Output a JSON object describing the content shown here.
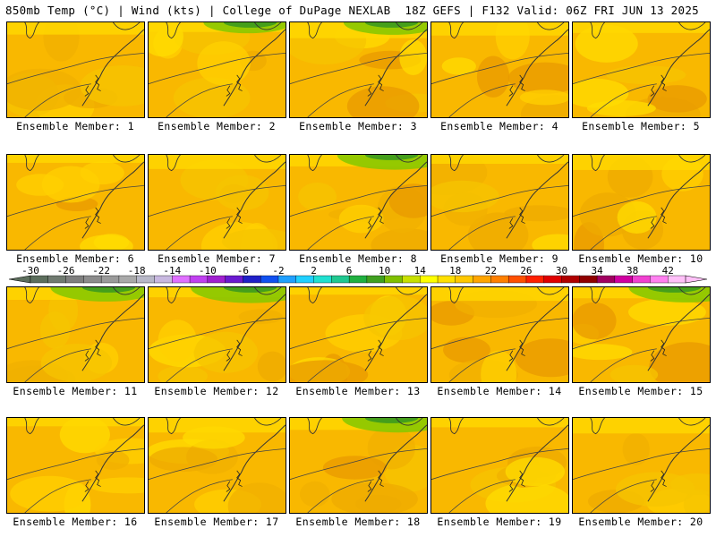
{
  "header": {
    "left": "850mb Temp (°C) | Wind (kts) | College of DuPage NEXLAB",
    "right": "18Z GEFS | F132 Valid: 06Z FRI JUN 13 2025"
  },
  "panels": [
    {
      "label": "Ensemble Member: 1"
    },
    {
      "label": "Ensemble Member: 2"
    },
    {
      "label": "Ensemble Member: 3"
    },
    {
      "label": "Ensemble Member: 4"
    },
    {
      "label": "Ensemble Member: 5"
    },
    {
      "label": "Ensemble Member: 6"
    },
    {
      "label": "Ensemble Member: 7"
    },
    {
      "label": "Ensemble Member: 8"
    },
    {
      "label": "Ensemble Member: 9"
    },
    {
      "label": "Ensemble Member: 10"
    },
    {
      "label": "Ensemble Member: 11"
    },
    {
      "label": "Ensemble Member: 12"
    },
    {
      "label": "Ensemble Member: 13"
    },
    {
      "label": "Ensemble Member: 14"
    },
    {
      "label": "Ensemble Member: 15"
    },
    {
      "label": "Ensemble Member: 16"
    },
    {
      "label": "Ensemble Member: 17"
    },
    {
      "label": "Ensemble Member: 18"
    },
    {
      "label": "Ensemble Member: 19"
    },
    {
      "label": "Ensemble Member: 20"
    }
  ],
  "colorbar": {
    "tick_labels": [
      "-30",
      "-26",
      "-22",
      "-18",
      "-14",
      "-10",
      "-6",
      "-2",
      "2",
      "6",
      "10",
      "14",
      "18",
      "22",
      "26",
      "30",
      "34",
      "38",
      "42"
    ],
    "colors": [
      "#5c6e5c",
      "#707a70",
      "#7f7f7f",
      "#8c8c8c",
      "#9a9a9a",
      "#a9a9a9",
      "#b8b8c8",
      "#c8b8e0",
      "#e070ff",
      "#c040f0",
      "#a020d0",
      "#6a1ad0",
      "#2020c8",
      "#1050f0",
      "#20a0ff",
      "#20d0ff",
      "#20e0d0",
      "#20c890",
      "#20b040",
      "#40a020",
      "#80c000",
      "#c8e000",
      "#ffff00",
      "#ffe000",
      "#ffc800",
      "#ffa500",
      "#ff8000",
      "#ff5000",
      "#ff2000",
      "#e00000",
      "#b00000",
      "#900000",
      "#a00060",
      "#d000a0",
      "#f040d0",
      "#ff80f0",
      "#ffc0f8"
    ]
  }
}
